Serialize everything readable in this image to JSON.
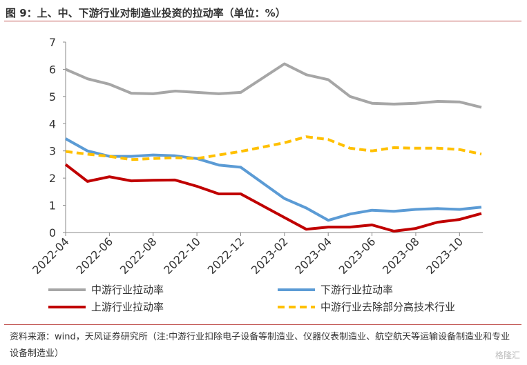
{
  "title": "图 9：上、中、下游行业对制造业投资的拉动率（单位：%）",
  "source": "资料来源：wind，天风证券研究所（注:中游行业扣除电子设备等制造业、仪器仪表制造业、航空航天等运输设备制造业和专业设备制造业）",
  "watermark": "格隆汇",
  "chart_data": {
    "type": "line",
    "y_ticks": [
      "0",
      "1",
      "2",
      "3",
      "4",
      "5",
      "6",
      "7"
    ],
    "ylim": [
      0,
      7
    ],
    "x_tick_labels": [
      "2022-04",
      "2022-06",
      "2022-08",
      "2022-10",
      "2022-12",
      "2023-02",
      "2023-04",
      "2023-06",
      "2023-08",
      "2023-10"
    ],
    "x": [
      "2022-04",
      "2022-05",
      "2022-06",
      "2022-07",
      "2022-08",
      "2022-09",
      "2022-10",
      "2022-11",
      "2022-12",
      "2023-01",
      "2023-02",
      "2023-03",
      "2023-04",
      "2023-05",
      "2023-06",
      "2023-07",
      "2023-08",
      "2023-09",
      "2023-10",
      "2023-11"
    ],
    "legend_position": "bottom",
    "series": [
      {
        "name": "中游行业拉动率",
        "color": "#a6a6a6",
        "dash": false,
        "values": [
          6.0,
          5.65,
          5.45,
          5.12,
          5.1,
          5.2,
          5.15,
          5.1,
          5.15,
          null,
          6.2,
          5.8,
          5.62,
          5.0,
          4.75,
          4.72,
          4.75,
          4.82,
          4.8,
          4.6
        ]
      },
      {
        "name": "下游行业拉动率",
        "color": "#5b9bd5",
        "dash": false,
        "values": [
          3.45,
          3.0,
          2.8,
          2.8,
          2.85,
          2.82,
          2.72,
          2.48,
          2.4,
          null,
          1.25,
          0.9,
          0.45,
          0.68,
          0.82,
          0.78,
          0.85,
          0.88,
          0.85,
          0.93
        ]
      },
      {
        "name": "上游行业拉动率",
        "color": "#c00000",
        "dash": false,
        "values": [
          2.5,
          1.88,
          2.05,
          1.9,
          1.92,
          1.93,
          1.7,
          1.42,
          1.42,
          null,
          0.55,
          0.12,
          0.2,
          0.2,
          0.28,
          0.05,
          0.15,
          0.38,
          0.48,
          0.7
        ]
      },
      {
        "name": "中游行业去除部分高技术行业",
        "color": "#ffc000",
        "dash": true,
        "values": [
          2.98,
          2.88,
          2.8,
          2.68,
          2.72,
          2.75,
          2.72,
          2.85,
          2.98,
          null,
          3.3,
          3.52,
          3.42,
          3.1,
          3.0,
          3.12,
          3.1,
          3.1,
          3.05,
          2.88
        ]
      }
    ]
  }
}
